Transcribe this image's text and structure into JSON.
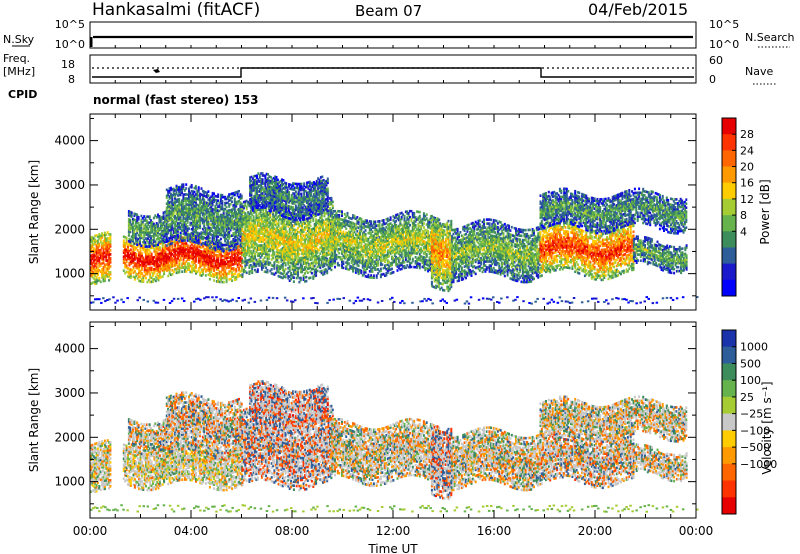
{
  "header": {
    "station": "Hankasalmi (fitACF)",
    "beam": "Beam 07",
    "date": "04/Feb/2015"
  },
  "noise_panel": {
    "label": "N.Sky",
    "right_label": "N.Search",
    "yticks_left": [
      "10^5",
      "10^0"
    ],
    "yticks_right": [
      "10^5",
      "10^0"
    ]
  },
  "freq_panel": {
    "label_line1": "Freq.",
    "label_line2": "[MHz]",
    "yticks_left": [
      "18",
      "8"
    ],
    "yticks_right": [
      "60",
      "0"
    ],
    "right_label": "Nave"
  },
  "cpid_panel": {
    "label": "CPID",
    "text": "normal (fast stereo) 153"
  },
  "chart_data": [
    {
      "type": "heatmap",
      "name": "power",
      "ylabel": "Slant Range [km]",
      "xlabel": "",
      "yticks": [
        1000,
        2000,
        3000,
        4000
      ],
      "ylim": [
        180,
        4600
      ],
      "xlim": [
        0,
        24
      ],
      "colorbar": {
        "label": "Power [dB]",
        "ticks": [
          "28",
          "24",
          "20",
          "16",
          "12",
          "8",
          "4"
        ],
        "colors": [
          "#e60000",
          "#ff3300",
          "#ff6600",
          "#ff9900",
          "#ffcc00",
          "#a6cc33",
          "#66b34d",
          "#3d8c5c",
          "#2e5e99",
          "#1a1acc",
          "#0000ff"
        ]
      }
    },
    {
      "type": "heatmap",
      "name": "velocity",
      "ylabel": "Slant Range [km]",
      "xlabel": "Time UT",
      "yticks": [
        1000,
        2000,
        3000,
        4000
      ],
      "ylim": [
        180,
        4600
      ],
      "xlim": [
        0,
        24
      ],
      "xticks": [
        "00:00",
        "04:00",
        "08:00",
        "12:00",
        "16:00",
        "20:00",
        "00:00"
      ],
      "colorbar": {
        "label": "Velocity [m s⁻¹]",
        "ticks": [
          "1000",
          "500",
          "100",
          "25",
          "−25",
          "−100",
          "−500",
          "−1000"
        ],
        "colors": [
          "#1a33aa",
          "#2e5e99",
          "#3d8c5c",
          "#66b34d",
          "#a6cc33",
          "#c8c8c8",
          "#ffcc00",
          "#ff9900",
          "#ff6600",
          "#ff3300",
          "#e60000"
        ]
      }
    }
  ]
}
